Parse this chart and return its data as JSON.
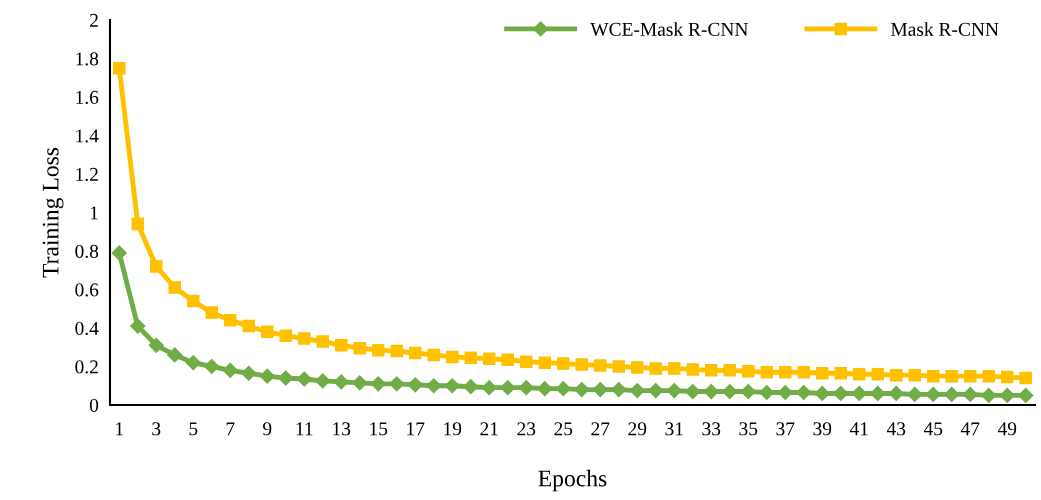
{
  "chart_data": {
    "type": "line",
    "xlabel": "Epochs",
    "ylabel": "Training Loss",
    "categories": [
      "1",
      null,
      "3",
      null,
      "5",
      null,
      "7",
      null,
      "9",
      null,
      "11",
      null,
      "13",
      null,
      "15",
      null,
      "17",
      null,
      "19",
      null,
      "21",
      null,
      "23",
      null,
      "25",
      null,
      "27",
      null,
      "29",
      null,
      "31",
      null,
      "33",
      null,
      "35",
      null,
      "37",
      null,
      "39",
      null,
      "41",
      null,
      "43",
      null,
      "45",
      null,
      "47",
      null,
      "49",
      null
    ],
    "series": [
      {
        "name": "WCE-Mask R-CNN",
        "color": "#70ad47",
        "marker": "diamond",
        "values": [
          0.79,
          0.41,
          0.31,
          0.26,
          0.22,
          0.2,
          0.18,
          0.165,
          0.15,
          0.14,
          0.135,
          0.125,
          0.12,
          0.115,
          0.11,
          0.11,
          0.105,
          0.1,
          0.1,
          0.095,
          0.09,
          0.09,
          0.09,
          0.085,
          0.085,
          0.08,
          0.08,
          0.08,
          0.075,
          0.075,
          0.075,
          0.07,
          0.07,
          0.07,
          0.07,
          0.065,
          0.065,
          0.065,
          0.06,
          0.06,
          0.06,
          0.06,
          0.06,
          0.055,
          0.055,
          0.055,
          0.055,
          0.05,
          0.05,
          0.05
        ]
      },
      {
        "name": "Mask R-CNN",
        "color": "#ffc000",
        "marker": "square",
        "values": [
          1.75,
          0.94,
          0.72,
          0.61,
          0.54,
          0.48,
          0.44,
          0.41,
          0.38,
          0.36,
          0.345,
          0.33,
          0.31,
          0.295,
          0.285,
          0.28,
          0.27,
          0.26,
          0.25,
          0.245,
          0.24,
          0.235,
          0.225,
          0.22,
          0.215,
          0.21,
          0.205,
          0.2,
          0.195,
          0.19,
          0.19,
          0.185,
          0.18,
          0.18,
          0.175,
          0.17,
          0.17,
          0.17,
          0.165,
          0.165,
          0.16,
          0.16,
          0.155,
          0.155,
          0.15,
          0.15,
          0.15,
          0.15,
          0.145,
          0.14
        ]
      }
    ],
    "ylim": [
      0,
      2
    ],
    "yticks": [
      0,
      0.2,
      0.4,
      0.6,
      0.8,
      1,
      1.2,
      1.4,
      1.6,
      1.8,
      2
    ],
    "grid": false,
    "legend": "top right",
    "line_style": "solid"
  }
}
